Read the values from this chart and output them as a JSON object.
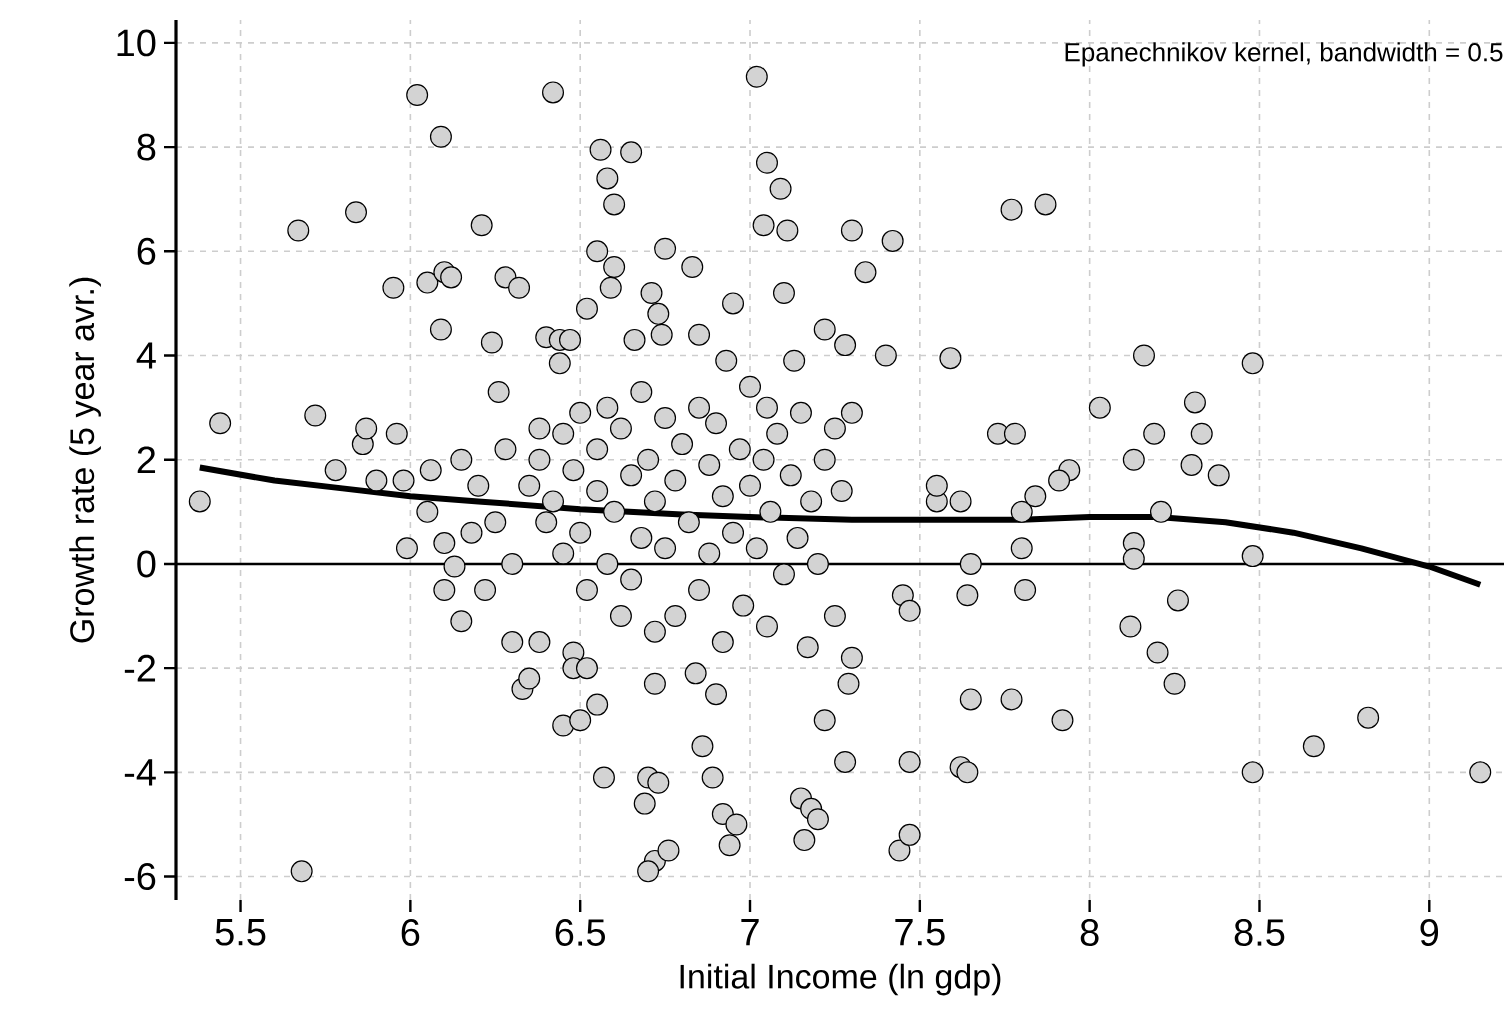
{
  "chart_data": {
    "type": "scatter",
    "xlabel": "Initial Income (ln gdp)",
    "ylabel": "Growth rate (5 year avr.)",
    "annotations": [
      "Epanechnikov kernel, bandwidth = 0.5"
    ],
    "xlim": [
      5.31,
      9.22
    ],
    "ylim": [
      -6.45,
      10.44
    ],
    "xticks": [
      5.5,
      6,
      6.5,
      7,
      7.5,
      8,
      8.5,
      9
    ],
    "yticks": [
      -6,
      -4,
      -2,
      0,
      2,
      4,
      6,
      8,
      10
    ],
    "grid": true,
    "ref_lines": [
      {
        "axis": "y",
        "value": 0,
        "color": "#000000"
      }
    ],
    "series": [
      {
        "color": "#d3d3d3",
        "x": [
          5.38,
          5.44,
          5.67,
          5.68,
          5.72,
          5.78,
          5.84,
          5.86,
          5.87,
          5.9,
          5.95,
          5.96,
          5.98,
          5.99,
          6.02,
          6.05,
          6.06,
          6.09,
          6.09,
          6.1,
          6.12,
          6.1,
          6.1,
          6.15,
          6.13,
          6.21,
          6.24,
          6.26,
          6.28,
          6.32,
          6.3,
          6.33,
          6.35,
          6.38,
          6.38,
          6.4,
          6.42,
          6.44,
          6.44,
          6.47,
          6.48,
          6.48,
          6.52,
          6.45,
          6.5,
          6.55,
          6.57,
          6.52,
          6.55,
          6.56,
          6.58,
          6.6,
          6.6,
          6.59,
          6.65,
          6.66,
          6.71,
          6.73,
          6.75,
          6.74,
          6.69,
          6.72,
          6.7,
          6.7,
          6.73,
          6.72,
          6.76,
          6.83,
          6.85,
          6.84,
          6.86,
          6.89,
          6.9,
          6.92,
          6.94,
          6.96,
          6.95,
          6.93,
          7.02,
          7.05,
          7.09,
          7.1,
          7.11,
          7.13,
          7.04,
          7.05,
          7.15,
          7.18,
          7.2,
          7.16,
          7.22,
          7.28,
          7.29,
          7.22,
          7.25,
          7.28,
          7.3,
          7.3,
          7.34,
          7.42,
          7.4,
          7.44,
          7.47,
          7.47,
          7.45,
          7.47,
          7.55,
          7.55,
          7.59,
          7.62,
          7.62,
          7.64,
          7.65,
          7.65,
          7.64,
          7.73,
          7.77,
          7.77,
          7.78,
          7.8,
          7.8,
          7.81,
          7.84,
          7.87,
          7.92,
          7.94,
          7.91,
          8.03,
          8.13,
          8.13,
          8.13,
          8.12,
          8.16,
          8.19,
          8.2,
          8.21,
          8.25,
          8.26,
          8.3,
          8.31,
          8.33,
          8.38,
          8.48,
          8.48,
          8.48,
          8.66,
          8.82,
          9.15,
          6.35,
          6.38,
          6.4,
          6.42,
          6.45,
          6.45,
          6.48,
          6.5,
          6.5,
          6.52,
          6.55,
          6.55,
          6.58,
          6.58,
          6.6,
          6.62,
          6.62,
          6.65,
          6.65,
          6.68,
          6.68,
          6.7,
          6.72,
          6.72,
          6.75,
          6.75,
          6.78,
          6.78,
          6.8,
          6.82,
          6.85,
          6.85,
          6.88,
          6.88,
          6.9,
          6.92,
          6.92,
          6.95,
          6.97,
          6.98,
          7.0,
          7.0,
          7.02,
          7.04,
          7.05,
          7.06,
          7.08,
          7.1,
          7.12,
          7.14,
          7.15,
          7.17,
          7.18,
          7.2,
          7.22,
          7.25,
          7.27,
          7.3,
          6.2,
          6.25,
          6.28,
          6.15,
          6.22,
          6.3,
          6.05,
          6.18
        ],
        "values": [
          1.2,
          2.7,
          6.4,
          -5.9,
          2.85,
          1.8,
          6.75,
          2.3,
          2.6,
          1.6,
          5.3,
          2.5,
          1.6,
          0.3,
          9.0,
          5.4,
          1.8,
          8.2,
          4.5,
          5.6,
          5.5,
          0.4,
          -0.5,
          -1.1,
          -0.05,
          6.5,
          4.25,
          3.3,
          5.5,
          5.3,
          -1.5,
          -2.4,
          -2.2,
          2.6,
          -1.5,
          4.35,
          9.05,
          4.3,
          3.85,
          4.3,
          -1.7,
          -2.0,
          -2.0,
          -3.1,
          -3.0,
          -2.7,
          -4.1,
          4.9,
          6.0,
          7.95,
          7.4,
          6.9,
          5.7,
          5.3,
          7.9,
          4.3,
          5.2,
          4.8,
          6.05,
          4.4,
          -4.6,
          -5.7,
          -5.9,
          -4.1,
          -4.2,
          -2.3,
          -5.5,
          5.7,
          4.4,
          -2.1,
          -3.5,
          -4.1,
          -2.5,
          -4.8,
          -5.4,
          -5.0,
          5.0,
          3.9,
          9.35,
          7.7,
          7.2,
          5.2,
          6.4,
          3.9,
          6.5,
          3.0,
          -4.5,
          -4.7,
          -4.9,
          -5.3,
          -3.0,
          -3.8,
          -2.3,
          4.5,
          2.6,
          4.2,
          2.9,
          6.4,
          5.6,
          6.2,
          4.0,
          -5.5,
          -5.2,
          -3.8,
          -0.6,
          -0.9,
          1.2,
          1.5,
          3.95,
          1.2,
          -3.9,
          -4.0,
          0.0,
          -2.6,
          -0.6,
          2.5,
          6.8,
          -2.6,
          2.5,
          1.0,
          0.3,
          -0.5,
          1.3,
          6.9,
          -3.0,
          1.8,
          1.6,
          3.0,
          2.0,
          0.4,
          0.1,
          -1.2,
          4.0,
          2.5,
          -1.7,
          1.0,
          -2.3,
          -0.7,
          1.9,
          3.1,
          2.5,
          1.7,
          3.85,
          0.15,
          -4.0,
          -3.5,
          -2.95,
          -4.0,
          1.5,
          2.0,
          0.8,
          1.2,
          2.5,
          0.2,
          1.8,
          2.9,
          0.6,
          -0.5,
          1.4,
          2.2,
          0.0,
          3.0,
          1.0,
          -1.0,
          2.6,
          1.7,
          -0.3,
          3.3,
          0.5,
          2.0,
          -1.3,
          1.2,
          2.8,
          0.3,
          1.6,
          -1.0,
          2.3,
          0.8,
          3.0,
          -0.5,
          1.9,
          0.2,
          2.7,
          -1.5,
          1.3,
          0.6,
          2.2,
          -0.8,
          1.5,
          3.4,
          0.3,
          2.0,
          -1.2,
          1.0,
          2.5,
          -0.2,
          1.7,
          0.5,
          2.9,
          -1.6,
          1.2,
          0.0,
          2.0,
          -1.0,
          1.4,
          -1.8,
          1.5,
          0.8,
          2.2,
          2.0,
          -0.5,
          0.0,
          1.0,
          0.6
        ]
      },
      {
        "type": "line",
        "color": "#000000",
        "line_style": "solid",
        "x": [
          5.38,
          5.6,
          5.8,
          6.0,
          6.2,
          6.5,
          6.8,
          7.0,
          7.3,
          7.6,
          7.8,
          8.0,
          8.2,
          8.4,
          8.6,
          8.8,
          9.0,
          9.15
        ],
        "values": [
          1.85,
          1.6,
          1.45,
          1.3,
          1.2,
          1.05,
          0.95,
          0.9,
          0.85,
          0.85,
          0.85,
          0.9,
          0.9,
          0.8,
          0.6,
          0.3,
          -0.05,
          -0.4
        ]
      }
    ]
  }
}
